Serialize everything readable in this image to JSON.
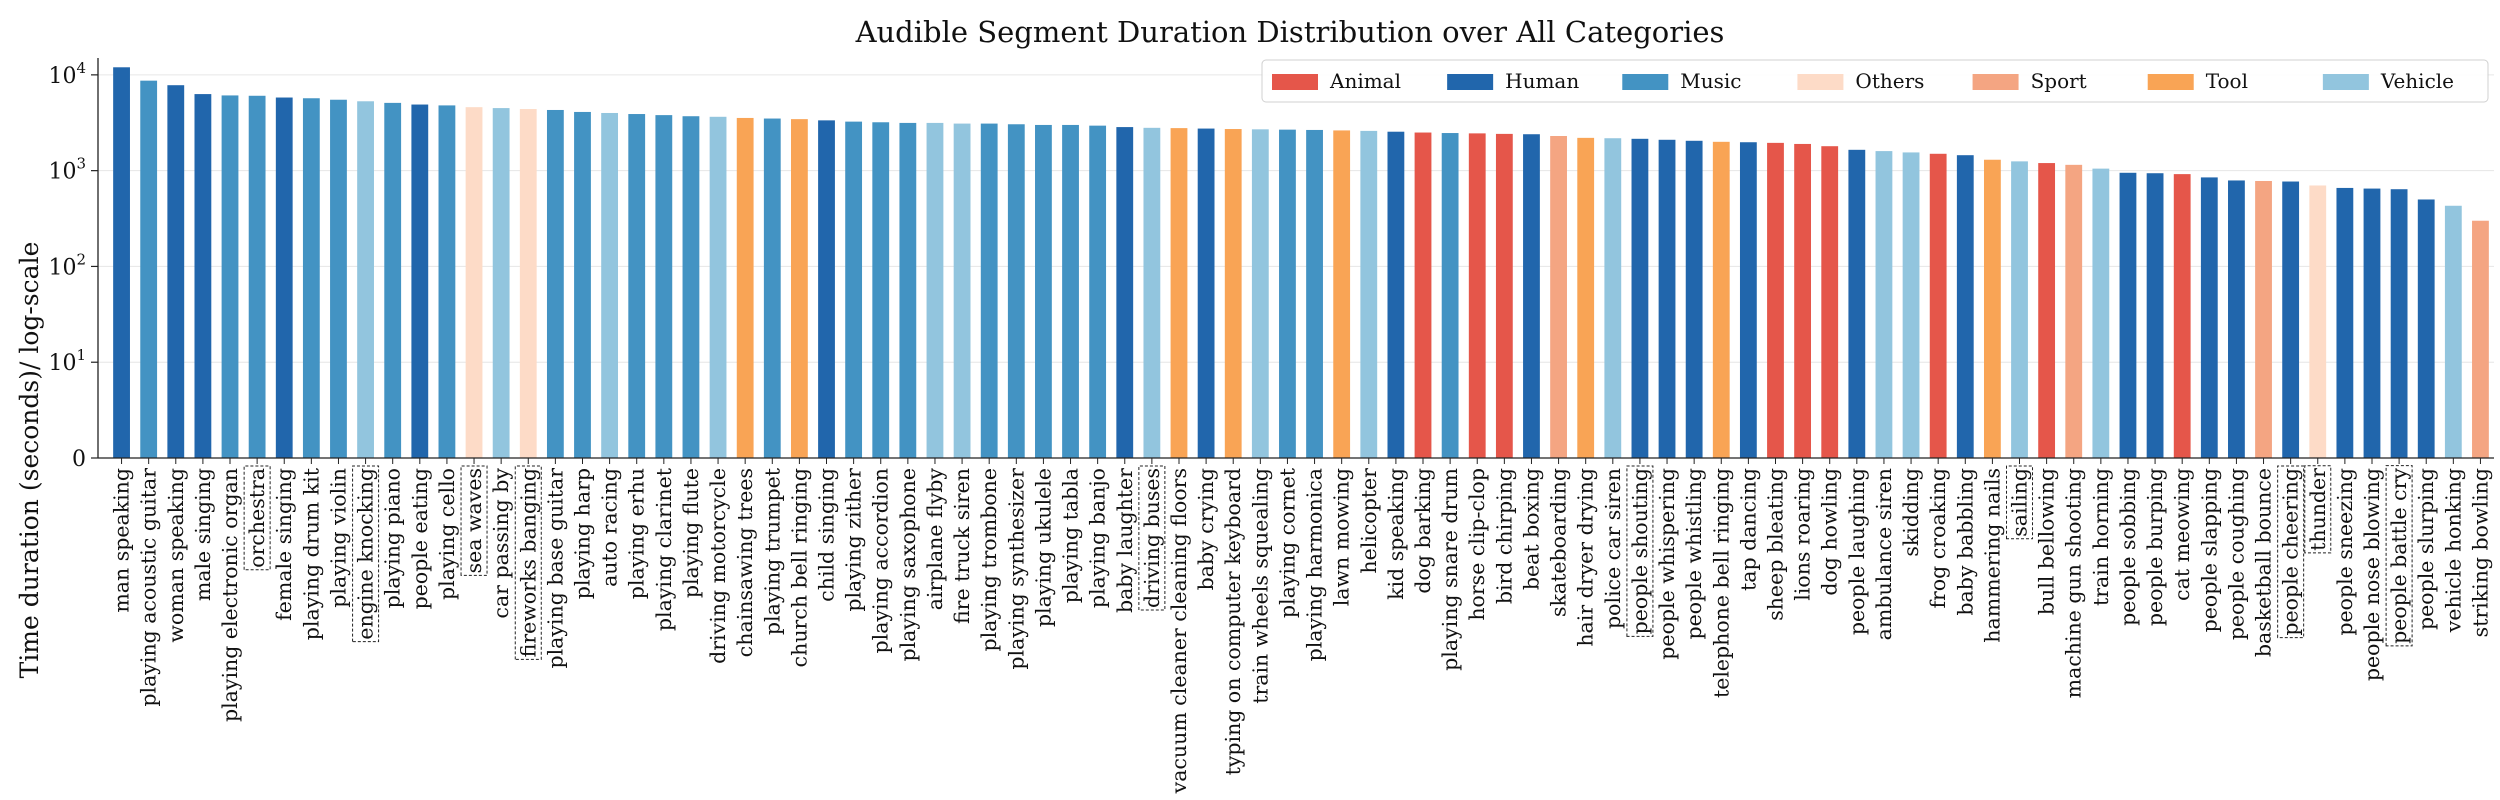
{
  "chart_data": {
    "type": "bar",
    "title": "Audible Segment Duration Distribution over All Categories",
    "xlabel": "",
    "ylabel": "Time duration (seconds)/ log-scale",
    "yscale": "log",
    "ylim": [
      1,
      15000
    ],
    "yticks": [
      {
        "value": 1,
        "label": "0"
      },
      {
        "value": 10,
        "label": "10",
        "sup": "1"
      },
      {
        "value": 100,
        "label": "10",
        "sup": "2"
      },
      {
        "value": 1000,
        "label": "10",
        "sup": "3"
      },
      {
        "value": 10000,
        "label": "10",
        "sup": "4"
      }
    ],
    "grid": "horizontal",
    "legend_position": "top-right",
    "groups": [
      {
        "name": "Animal",
        "color": "#e5564a"
      },
      {
        "name": "Human",
        "color": "#2166ac"
      },
      {
        "name": "Music",
        "color": "#4393c3"
      },
      {
        "name": "Others",
        "color": "#fddbc7"
      },
      {
        "name": "Sport",
        "color": "#f4a582"
      },
      {
        "name": "Tool",
        "color": "#f9a455"
      },
      {
        "name": "Vehicle",
        "color": "#92c5de"
      }
    ],
    "bars": [
      {
        "label": "man speaking",
        "value": 12000,
        "group": "Human"
      },
      {
        "label": "playing acoustic guitar",
        "value": 8700,
        "group": "Music"
      },
      {
        "label": "woman speaking",
        "value": 7800,
        "group": "Human"
      },
      {
        "label": "male singing",
        "value": 6300,
        "group": "Human"
      },
      {
        "label": "playing electronic organ",
        "value": 6100,
        "group": "Music"
      },
      {
        "label": "orchestra",
        "value": 6050,
        "group": "Music",
        "boxed": true
      },
      {
        "label": "female singing",
        "value": 5800,
        "group": "Human"
      },
      {
        "label": "playing drum kit",
        "value": 5700,
        "group": "Music"
      },
      {
        "label": "playing violin",
        "value": 5500,
        "group": "Music"
      },
      {
        "label": "engine knocking",
        "value": 5300,
        "group": "Vehicle",
        "boxed": true
      },
      {
        "label": "playing piano",
        "value": 5100,
        "group": "Music"
      },
      {
        "label": "people eating",
        "value": 4900,
        "group": "Human"
      },
      {
        "label": "playing cello",
        "value": 4800,
        "group": "Music"
      },
      {
        "label": "sea waves",
        "value": 4600,
        "group": "Others",
        "boxed": true
      },
      {
        "label": "car passing by",
        "value": 4500,
        "group": "Vehicle"
      },
      {
        "label": "fireworks banging",
        "value": 4400,
        "group": "Others",
        "boxed": true
      },
      {
        "label": "playing base guitar",
        "value": 4300,
        "group": "Music"
      },
      {
        "label": "playing harp",
        "value": 4100,
        "group": "Music"
      },
      {
        "label": "auto racing",
        "value": 4000,
        "group": "Vehicle"
      },
      {
        "label": "playing erhu",
        "value": 3900,
        "group": "Music"
      },
      {
        "label": "playing clarinet",
        "value": 3800,
        "group": "Music"
      },
      {
        "label": "playing flute",
        "value": 3700,
        "group": "Music"
      },
      {
        "label": "driving motorcycle",
        "value": 3650,
        "group": "Vehicle"
      },
      {
        "label": "chainsawing trees",
        "value": 3550,
        "group": "Tool"
      },
      {
        "label": "playing trumpet",
        "value": 3500,
        "group": "Music"
      },
      {
        "label": "church bell ringing",
        "value": 3450,
        "group": "Tool"
      },
      {
        "label": "child singing",
        "value": 3350,
        "group": "Human"
      },
      {
        "label": "playing zither",
        "value": 3250,
        "group": "Music"
      },
      {
        "label": "playing accordion",
        "value": 3200,
        "group": "Music"
      },
      {
        "label": "playing saxophone",
        "value": 3150,
        "group": "Music"
      },
      {
        "label": "airplane flyby",
        "value": 3150,
        "group": "Vehicle"
      },
      {
        "label": "fire truck siren",
        "value": 3100,
        "group": "Vehicle"
      },
      {
        "label": "playing trombone",
        "value": 3100,
        "group": "Music"
      },
      {
        "label": "playing synthesizer",
        "value": 3050,
        "group": "Music"
      },
      {
        "label": "playing ukulele",
        "value": 3000,
        "group": "Music"
      },
      {
        "label": "playing tabla",
        "value": 3000,
        "group": "Music"
      },
      {
        "label": "playing banjo",
        "value": 2950,
        "group": "Music"
      },
      {
        "label": "baby laughter",
        "value": 2850,
        "group": "Human"
      },
      {
        "label": "driving buses",
        "value": 2800,
        "group": "Vehicle",
        "boxed": true
      },
      {
        "label": "vacuum cleaner cleaning floors",
        "value": 2780,
        "group": "Tool"
      },
      {
        "label": "baby crying",
        "value": 2750,
        "group": "Human"
      },
      {
        "label": "typing on computer keyboard",
        "value": 2720,
        "group": "Tool"
      },
      {
        "label": "train wheels squealing",
        "value": 2700,
        "group": "Vehicle"
      },
      {
        "label": "playing cornet",
        "value": 2680,
        "group": "Music"
      },
      {
        "label": "playing harmonica",
        "value": 2660,
        "group": "Music"
      },
      {
        "label": "lawn mowing",
        "value": 2630,
        "group": "Tool"
      },
      {
        "label": "helicopter",
        "value": 2600,
        "group": "Vehicle"
      },
      {
        "label": "kid speaking",
        "value": 2550,
        "group": "Human"
      },
      {
        "label": "dog barking",
        "value": 2500,
        "group": "Animal"
      },
      {
        "label": "playing snare drum",
        "value": 2470,
        "group": "Music"
      },
      {
        "label": "horse clip-clop",
        "value": 2450,
        "group": "Animal"
      },
      {
        "label": "bird chirping",
        "value": 2420,
        "group": "Animal"
      },
      {
        "label": "beat boxing",
        "value": 2400,
        "group": "Human"
      },
      {
        "label": "skateboarding",
        "value": 2300,
        "group": "Sport"
      },
      {
        "label": "hair dryer drying",
        "value": 2200,
        "group": "Tool"
      },
      {
        "label": "police car siren",
        "value": 2180,
        "group": "Vehicle"
      },
      {
        "label": "people shouting",
        "value": 2150,
        "group": "Human",
        "boxed": true
      },
      {
        "label": "people whispering",
        "value": 2100,
        "group": "Human"
      },
      {
        "label": "people whistling",
        "value": 2050,
        "group": "Human"
      },
      {
        "label": "telephone bell ringing",
        "value": 2000,
        "group": "Tool"
      },
      {
        "label": "tap dancing",
        "value": 1980,
        "group": "Human"
      },
      {
        "label": "sheep bleating",
        "value": 1950,
        "group": "Animal"
      },
      {
        "label": "lions roaring",
        "value": 1900,
        "group": "Animal"
      },
      {
        "label": "dog howling",
        "value": 1800,
        "group": "Animal"
      },
      {
        "label": "people laughing",
        "value": 1650,
        "group": "Human"
      },
      {
        "label": "ambulance siren",
        "value": 1600,
        "group": "Vehicle"
      },
      {
        "label": "skidding",
        "value": 1550,
        "group": "Vehicle"
      },
      {
        "label": "frog croaking",
        "value": 1500,
        "group": "Animal"
      },
      {
        "label": "baby babbling",
        "value": 1450,
        "group": "Human"
      },
      {
        "label": "hammering nails",
        "value": 1300,
        "group": "Tool"
      },
      {
        "label": "sailing",
        "value": 1250,
        "group": "Vehicle",
        "boxed": true
      },
      {
        "label": "bull bellowing",
        "value": 1200,
        "group": "Animal"
      },
      {
        "label": "machine gun shooting",
        "value": 1150,
        "group": "Sport"
      },
      {
        "label": "train horning",
        "value": 1050,
        "group": "Vehicle"
      },
      {
        "label": "people sobbing",
        "value": 950,
        "group": "Human"
      },
      {
        "label": "people burping",
        "value": 940,
        "group": "Human"
      },
      {
        "label": "cat meowing",
        "value": 920,
        "group": "Animal"
      },
      {
        "label": "people slapping",
        "value": 850,
        "group": "Human"
      },
      {
        "label": "people coughing",
        "value": 790,
        "group": "Human"
      },
      {
        "label": "basketball bounce",
        "value": 780,
        "group": "Sport"
      },
      {
        "label": "people cheering",
        "value": 770,
        "group": "Human",
        "boxed": true
      },
      {
        "label": "thunder",
        "value": 700,
        "group": "Others",
        "boxed": true
      },
      {
        "label": "people sneezing",
        "value": 660,
        "group": "Human"
      },
      {
        "label": "people nose blowing",
        "value": 650,
        "group": "Human"
      },
      {
        "label": "people battle cry",
        "value": 640,
        "group": "Human",
        "boxed": true
      },
      {
        "label": "people slurping",
        "value": 500,
        "group": "Human"
      },
      {
        "label": "vehicle honking",
        "value": 430,
        "group": "Vehicle"
      },
      {
        "label": "striking bowling",
        "value": 300,
        "group": "Sport"
      }
    ]
  }
}
